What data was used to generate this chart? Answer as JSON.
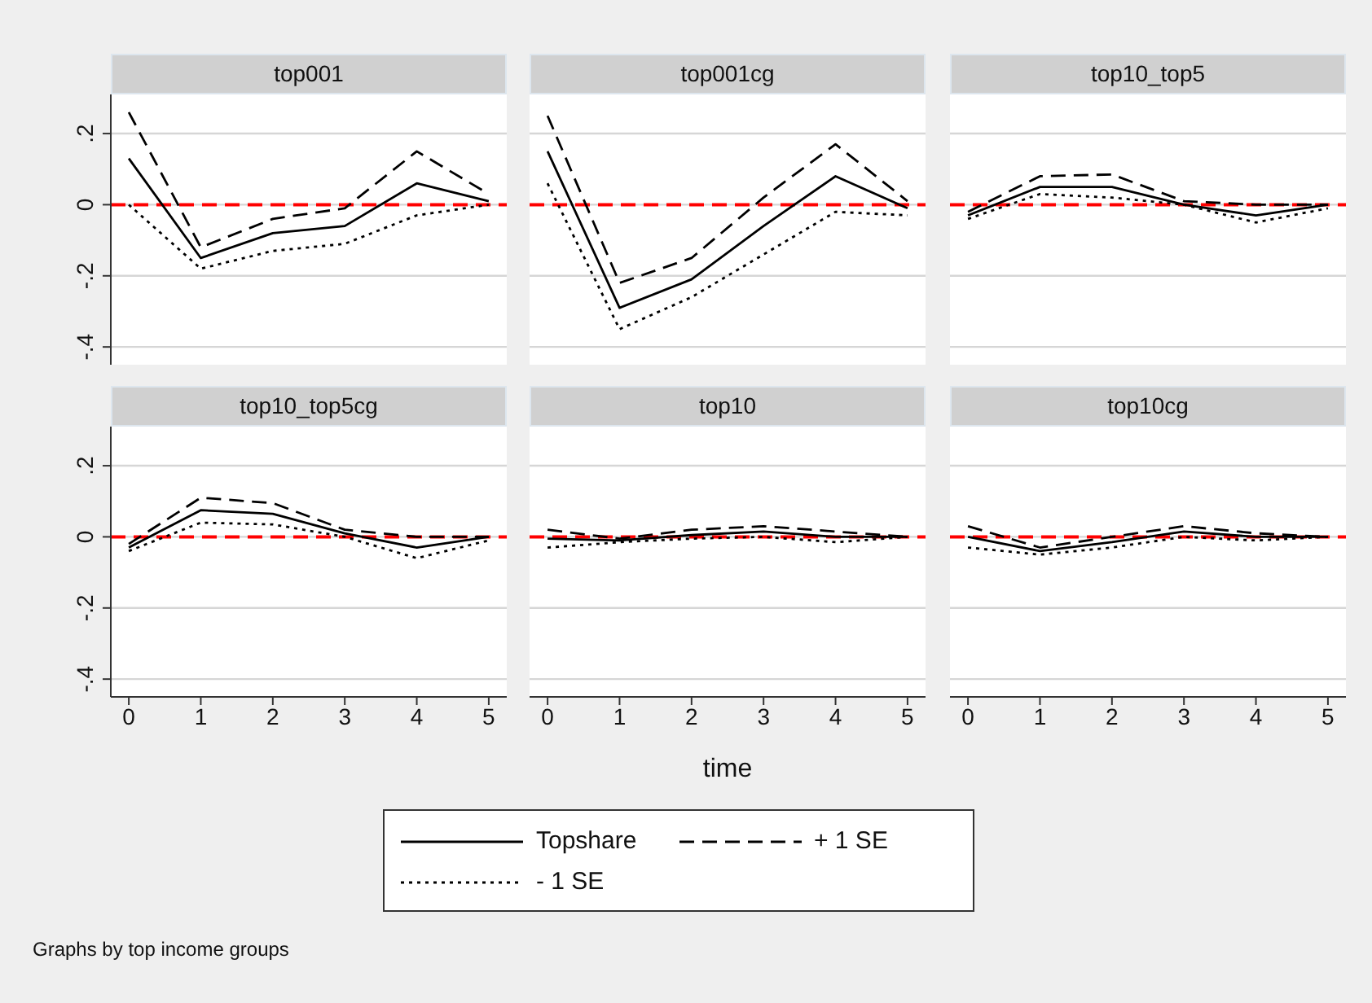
{
  "chart_data": [
    {
      "type": "line",
      "title": "top001",
      "legend": "bottom",
      "x": [
        0,
        1,
        2,
        3,
        4,
        5
      ],
      "xlim": [
        -0.25,
        5.25
      ],
      "ylim": [
        -0.45,
        0.31
      ],
      "yticks": [
        {
          "value": -0.4,
          "label": "-.4"
        },
        {
          "value": -0.2,
          "label": "-.2"
        },
        0,
        {
          "value": 0.2,
          "label": ".2"
        }
      ],
      "grid": "y",
      "tick_labels": "y",
      "ref_lines": [
        {
          "axis": "y",
          "value": 0,
          "color": "#ff0000",
          "line_style": "dashed"
        }
      ],
      "series": [
        {
          "name": "Topshare",
          "color": "#000000",
          "line_style": "solid",
          "values": [
            0.13,
            -0.15,
            -0.08,
            -0.06,
            0.06,
            0.01
          ]
        },
        {
          "name": "+ 1 SE",
          "color": "#000000",
          "line_style": "dashed",
          "values": [
            0.26,
            -0.12,
            -0.04,
            -0.01,
            0.15,
            0.03
          ]
        },
        {
          "name": "- 1 SE",
          "color": "#000000",
          "line_style": "dotted",
          "values": [
            0.0,
            -0.18,
            -0.13,
            -0.11,
            -0.03,
            0.0
          ]
        }
      ]
    },
    {
      "type": "line",
      "title": "top001cg",
      "x": [
        0,
        1,
        2,
        3,
        4,
        5
      ],
      "xlim": [
        -0.25,
        5.25
      ],
      "ylim": [
        -0.45,
        0.31
      ],
      "yticks": [
        -0.4,
        -0.2,
        0,
        0.2
      ],
      "grid": "y",
      "tick_labels": false,
      "ref_lines": [
        {
          "axis": "y",
          "value": 0,
          "color": "#ff0000",
          "line_style": "dashed"
        }
      ],
      "series": [
        {
          "color": "#000000",
          "line_style": "solid",
          "values": [
            0.15,
            -0.29,
            -0.21,
            -0.06,
            0.08,
            -0.01
          ]
        },
        {
          "color": "#000000",
          "line_style": "dashed",
          "values": [
            0.25,
            -0.22,
            -0.15,
            0.02,
            0.17,
            0.01
          ]
        },
        {
          "color": "#000000",
          "line_style": "dotted",
          "values": [
            0.06,
            -0.35,
            -0.26,
            -0.14,
            -0.02,
            -0.03
          ]
        }
      ]
    },
    {
      "type": "line",
      "title": "top10_top5",
      "x": [
        0,
        1,
        2,
        3,
        4,
        5
      ],
      "xlim": [
        -0.25,
        5.25
      ],
      "ylim": [
        -0.45,
        0.31
      ],
      "yticks": [
        -0.4,
        -0.2,
        0,
        0.2
      ],
      "grid": "y",
      "tick_labels": false,
      "ref_lines": [
        {
          "axis": "y",
          "value": 0,
          "color": "#ff0000",
          "line_style": "dashed"
        }
      ],
      "series": [
        {
          "color": "#000000",
          "line_style": "solid",
          "values": [
            -0.03,
            0.05,
            0.05,
            0.0,
            -0.03,
            0.0
          ]
        },
        {
          "color": "#000000",
          "line_style": "dashed",
          "values": [
            -0.02,
            0.08,
            0.085,
            0.01,
            0.0,
            0.0
          ]
        },
        {
          "color": "#000000",
          "line_style": "dotted",
          "values": [
            -0.04,
            0.03,
            0.02,
            0.0,
            -0.05,
            -0.01
          ]
        }
      ]
    },
    {
      "type": "line",
      "title": "top10_top5cg",
      "x": [
        0,
        1,
        2,
        3,
        4,
        5
      ],
      "xlim": [
        -0.25,
        5.25
      ],
      "xticks": [
        0,
        1,
        2,
        3,
        4,
        5
      ],
      "ylim": [
        -0.45,
        0.31
      ],
      "yticks": [
        {
          "value": -0.4,
          "label": "-.4"
        },
        {
          "value": -0.2,
          "label": "-.2"
        },
        0,
        {
          "value": 0.2,
          "label": ".2"
        }
      ],
      "grid": "y",
      "ref_lines": [
        {
          "axis": "y",
          "value": 0,
          "color": "#ff0000",
          "line_style": "dashed"
        }
      ],
      "annotations": [
        "Graphs by top income groups"
      ],
      "series": [
        {
          "color": "#000000",
          "line_style": "solid",
          "values": [
            -0.03,
            0.075,
            0.065,
            0.01,
            -0.03,
            0.0
          ]
        },
        {
          "color": "#000000",
          "line_style": "dashed",
          "values": [
            -0.02,
            0.11,
            0.095,
            0.02,
            0.0,
            0.0
          ]
        },
        {
          "color": "#000000",
          "line_style": "dotted",
          "values": [
            -0.04,
            0.04,
            0.035,
            0.0,
            -0.06,
            -0.01
          ]
        }
      ]
    },
    {
      "type": "line",
      "title": "top10",
      "xlabel": "time",
      "x": [
        0,
        1,
        2,
        3,
        4,
        5
      ],
      "xlim": [
        -0.25,
        5.25
      ],
      "xticks": [
        0,
        1,
        2,
        3,
        4,
        5
      ],
      "ylim": [
        -0.45,
        0.31
      ],
      "yticks": [
        -0.4,
        -0.2,
        0,
        0.2
      ],
      "grid": "y",
      "tick_labels": "x",
      "ref_lines": [
        {
          "axis": "y",
          "value": 0,
          "color": "#ff0000",
          "line_style": "dashed"
        }
      ],
      "series": [
        {
          "color": "#000000",
          "line_style": "solid",
          "values": [
            -0.005,
            -0.01,
            0.005,
            0.015,
            0.0,
            0.0
          ]
        },
        {
          "color": "#000000",
          "line_style": "dashed",
          "values": [
            0.02,
            -0.005,
            0.02,
            0.03,
            0.015,
            0.0
          ]
        },
        {
          "color": "#000000",
          "line_style": "dotted",
          "values": [
            -0.03,
            -0.015,
            -0.005,
            0.0,
            -0.015,
            0.0
          ]
        }
      ]
    },
    {
      "type": "line",
      "title": "top10cg",
      "x": [
        0,
        1,
        2,
        3,
        4,
        5
      ],
      "xlim": [
        -0.25,
        5.25
      ],
      "xticks": [
        0,
        1,
        2,
        3,
        4,
        5
      ],
      "ylim": [
        -0.45,
        0.31
      ],
      "yticks": [
        -0.4,
        -0.2,
        0,
        0.2
      ],
      "grid": "y",
      "tick_labels": "x",
      "ref_lines": [
        {
          "axis": "y",
          "value": 0,
          "color": "#ff0000",
          "line_style": "dashed"
        }
      ],
      "series": [
        {
          "color": "#000000",
          "line_style": "solid",
          "values": [
            0.0,
            -0.04,
            -0.015,
            0.015,
            0.0,
            0.0
          ]
        },
        {
          "color": "#000000",
          "line_style": "dashed",
          "values": [
            0.03,
            -0.03,
            0.0,
            0.03,
            0.01,
            0.0
          ]
        },
        {
          "color": "#000000",
          "line_style": "dotted",
          "values": [
            -0.03,
            -0.05,
            -0.03,
            0.0,
            -0.01,
            0.0
          ]
        }
      ]
    }
  ]
}
